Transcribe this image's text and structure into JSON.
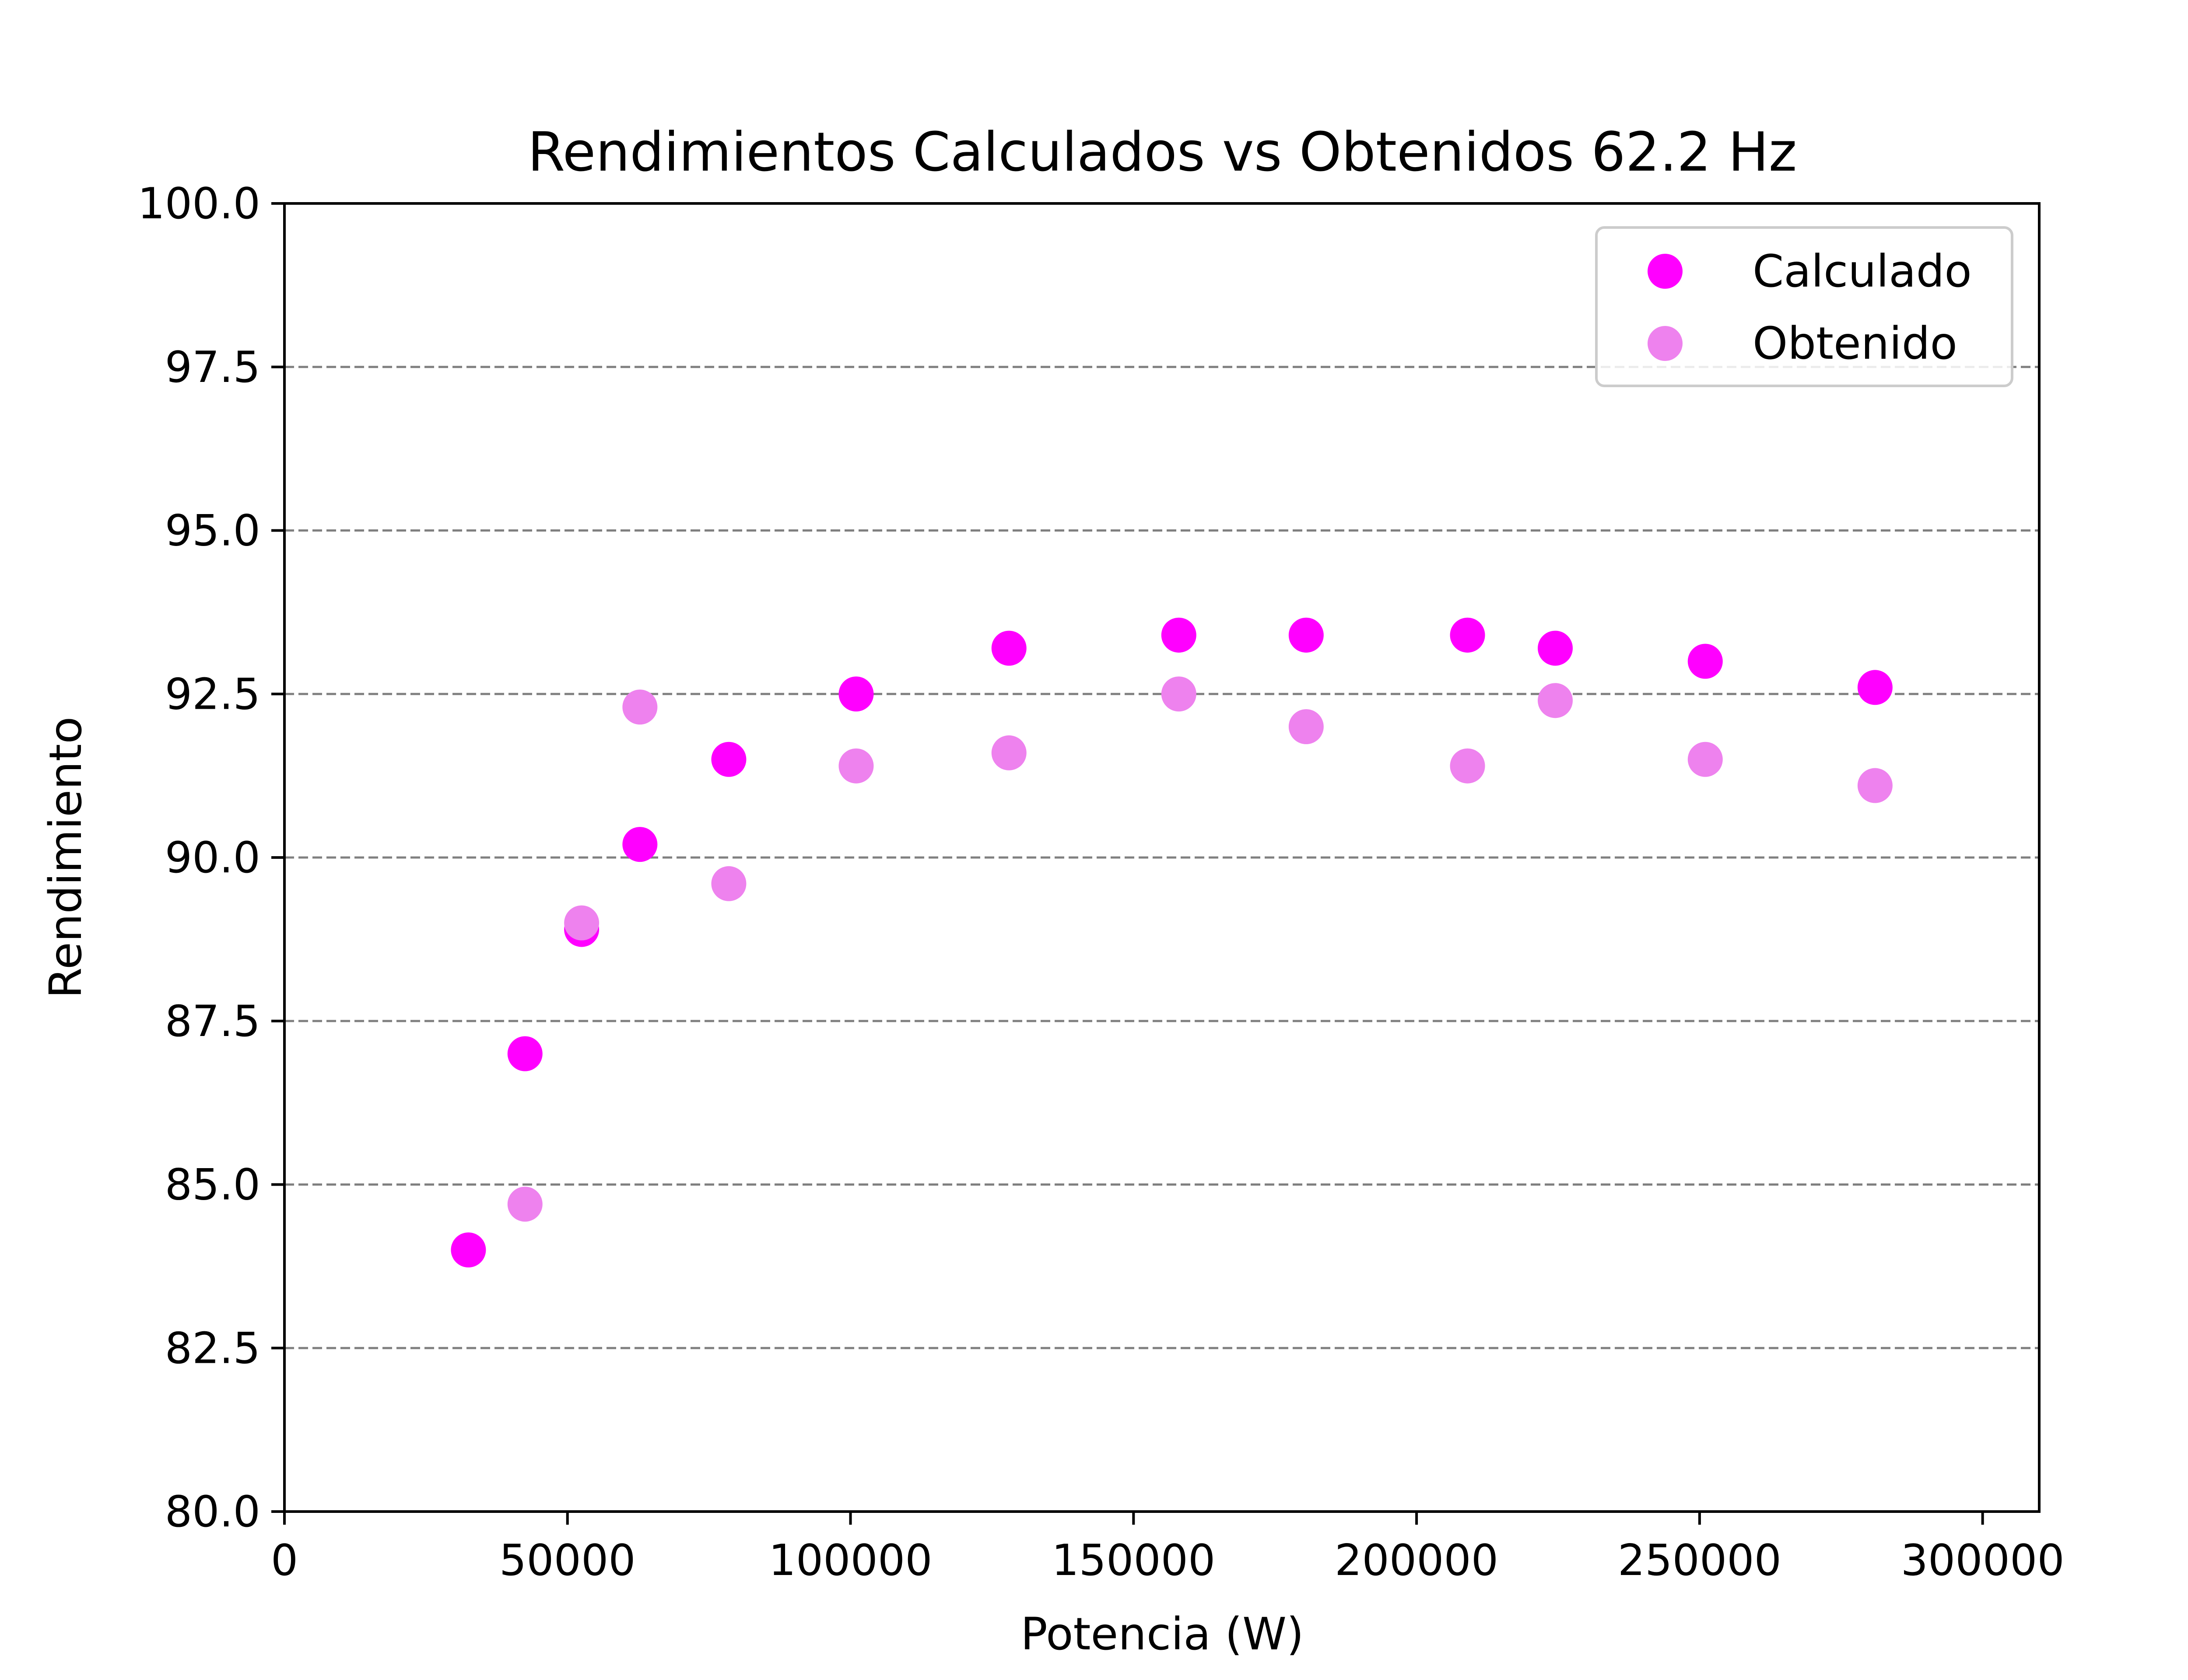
{
  "chart_data": {
    "type": "scatter",
    "title": "Rendimientos Calculados vs Obtenidos 62.2 Hz",
    "xlabel": "Potencia (W)",
    "ylabel": "Rendimiento",
    "xlim": [
      0,
      310000
    ],
    "ylim": [
      80.0,
      100.0
    ],
    "xticks": [
      0,
      50000,
      100000,
      150000,
      200000,
      250000,
      300000
    ],
    "xtick_labels": [
      "0",
      "50000",
      "100000",
      "150000",
      "200000",
      "250000",
      "300000"
    ],
    "yticks": [
      80.0,
      82.5,
      85.0,
      87.5,
      90.0,
      92.5,
      95.0,
      97.5,
      100.0
    ],
    "ytick_labels": [
      "80.0",
      "82.5",
      "85.0",
      "87.5",
      "90.0",
      "92.5",
      "95.0",
      "97.5",
      "100.0"
    ],
    "grid": "horizontal dashed",
    "legend_position": "top-right",
    "series": [
      {
        "name": "Calculado",
        "color": "#ff00ff",
        "x": [
          32500,
          42500,
          52500,
          62800,
          78500,
          101000,
          128000,
          158000,
          180500,
          209000,
          224500,
          251000,
          281000
        ],
        "y": [
          84.0,
          87.0,
          88.9,
          90.2,
          91.5,
          92.5,
          93.2,
          93.4,
          93.4,
          93.4,
          93.2,
          93.0,
          92.6
        ]
      },
      {
        "name": "Obtenido",
        "color": "#ee82ee",
        "x": [
          42500,
          52500,
          62800,
          78500,
          101000,
          128000,
          158000,
          180500,
          209000,
          224500,
          251000,
          281000
        ],
        "y": [
          84.7,
          89.0,
          92.3,
          89.6,
          91.4,
          91.6,
          92.5,
          92.0,
          91.4,
          92.4,
          91.5,
          91.1
        ]
      }
    ]
  }
}
